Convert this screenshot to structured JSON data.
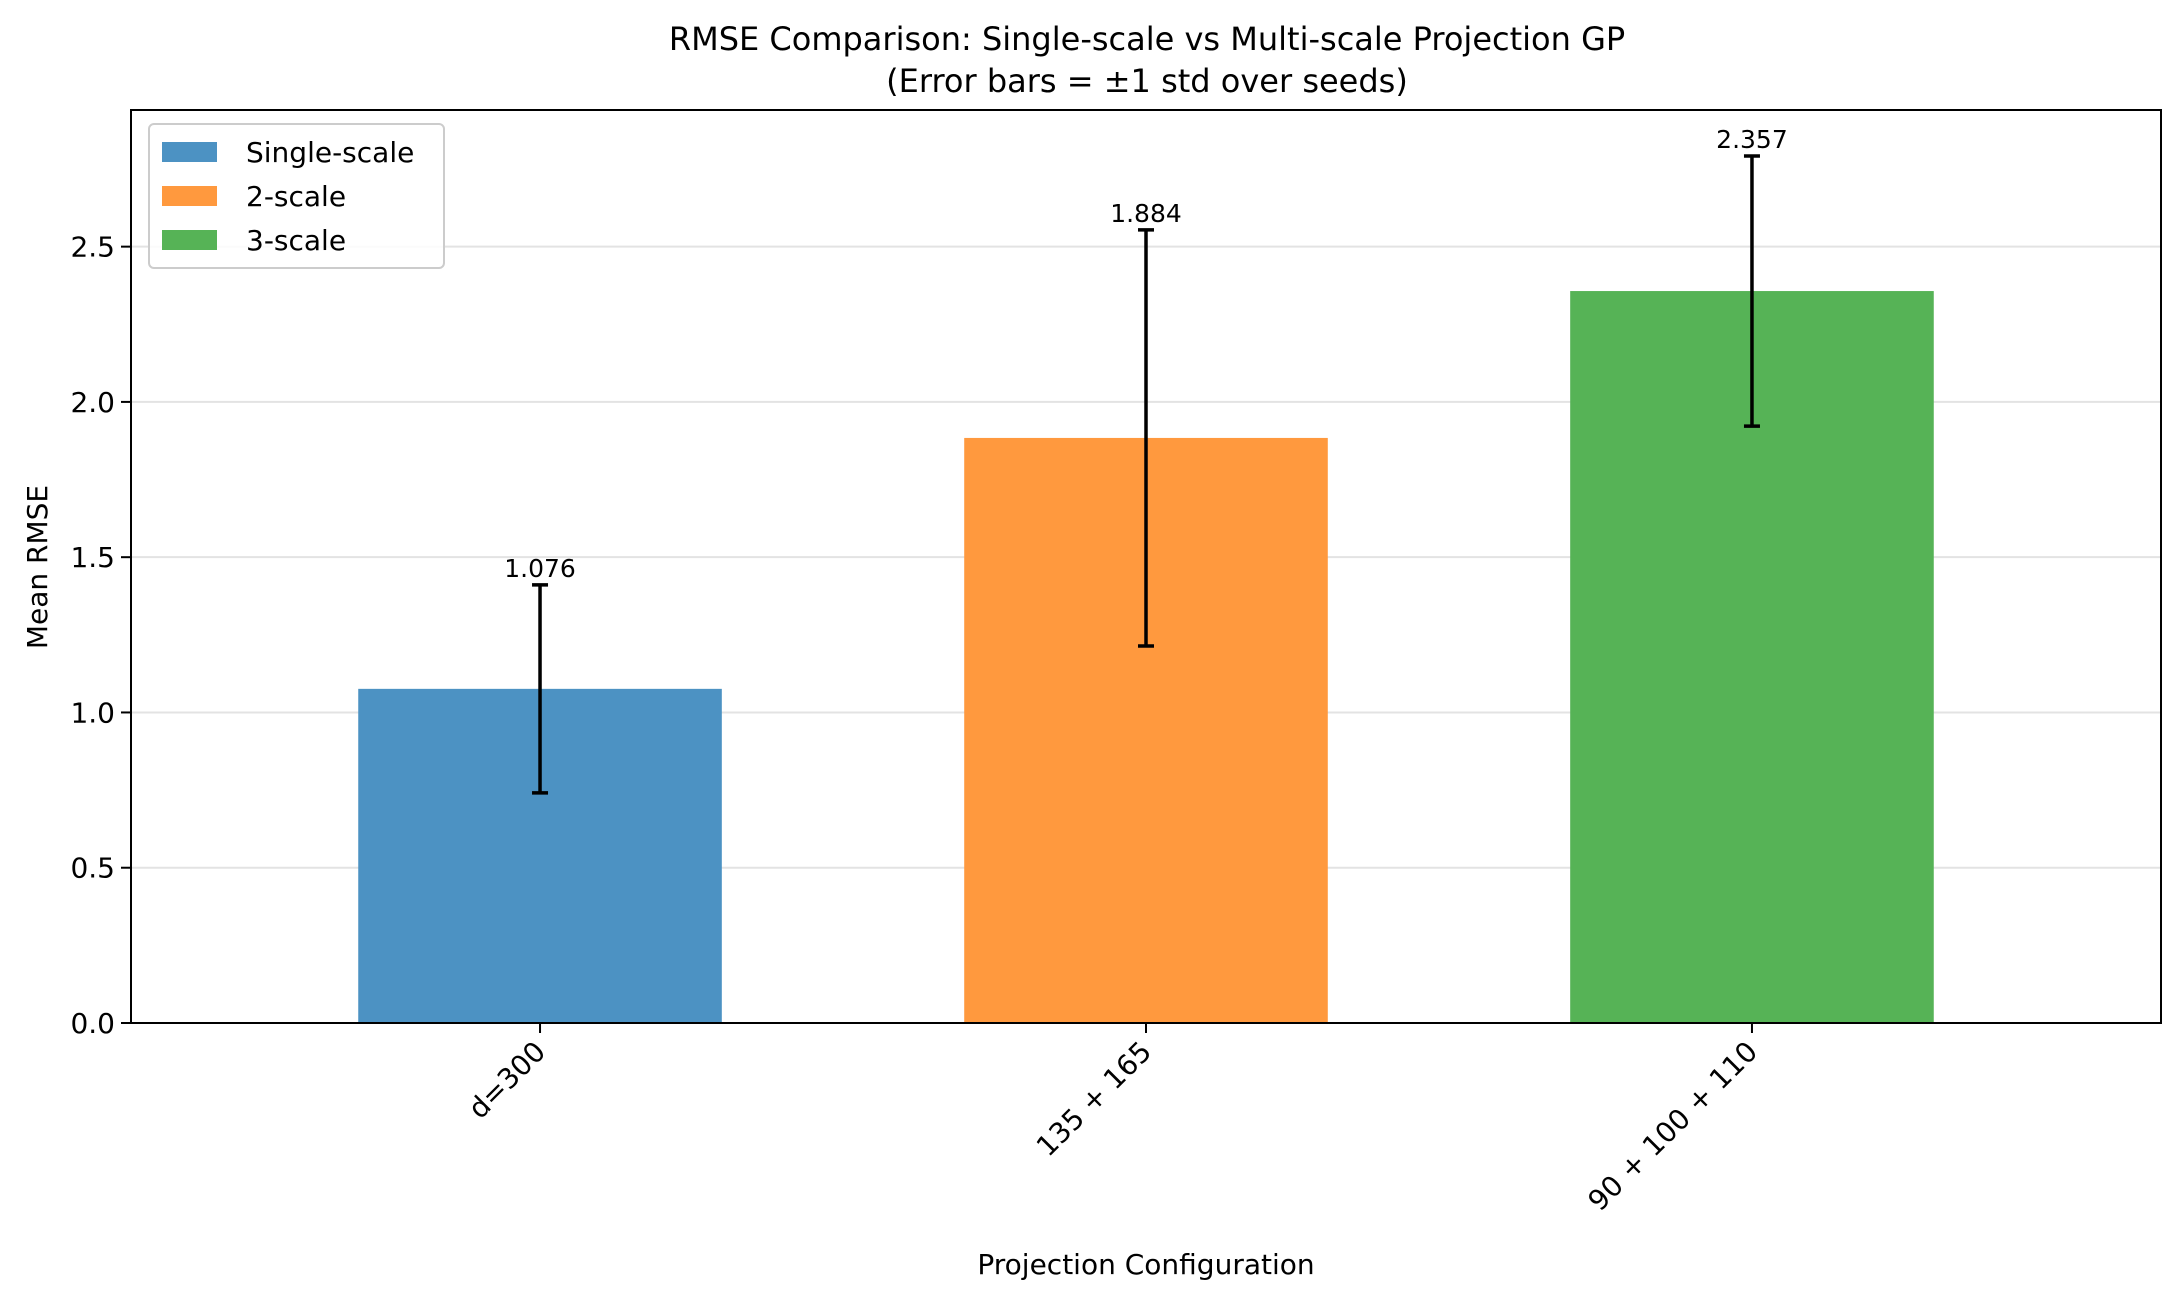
{
  "chart_data": {
    "type": "bar",
    "title": "RMSE Comparison: Single-scale vs Multi-scale Projection GP",
    "subtitle": "(Error bars = ±1 std over seeds)",
    "xlabel": "Projection Configuration",
    "ylabel": "Mean RMSE",
    "categories": [
      "d=300",
      "135 + 165",
      "90 + 100 + 110"
    ],
    "values": [
      1.076,
      1.884,
      2.357
    ],
    "value_labels": [
      "1.076",
      "1.884",
      "2.357"
    ],
    "error_std": [
      0.335,
      0.67,
      0.435
    ],
    "colors": [
      "#4c92c3",
      "#ff993e",
      "#56b356"
    ],
    "legend": [
      "Single-scale",
      "2-scale",
      "3-scale"
    ],
    "legend_position": "upper-left",
    "ylim": [
      0,
      2.94
    ],
    "yticks": [
      0.0,
      0.5,
      1.0,
      1.5,
      2.0,
      2.5
    ],
    "ytick_labels": [
      "0.0",
      "0.5",
      "1.0",
      "1.5",
      "2.0",
      "2.5"
    ],
    "grid": "y"
  }
}
